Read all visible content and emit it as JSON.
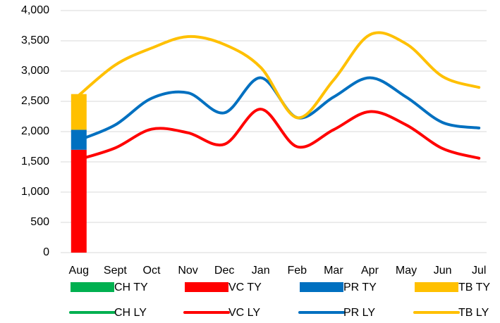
{
  "chart_data": {
    "type": "combo",
    "categories": [
      "Aug",
      "Sept",
      "Oct",
      "Nov",
      "Dec",
      "Jan",
      "Feb",
      "Mar",
      "Apr",
      "May",
      "Jun",
      "Jul"
    ],
    "ylim": [
      0,
      4000
    ],
    "yticks": [
      0,
      500,
      {
        "value": 1000,
        "label": "1,000"
      },
      {
        "value": 1500,
        "label": "1,500"
      },
      {
        "value": 2000,
        "label": "2,000"
      },
      {
        "value": 2500,
        "label": "2,500"
      },
      {
        "value": 3000,
        "label": "3,000"
      },
      {
        "value": 3500,
        "label": "3,500"
      },
      {
        "value": 4000,
        "label": "4,000"
      }
    ],
    "grid": true,
    "legend": "bottom",
    "series": [
      {
        "name": "CH TY",
        "kind": "bar",
        "color": "#00b050",
        "values": [
          0,
          null,
          null,
          null,
          null,
          null,
          null,
          null,
          null,
          null,
          null,
          null
        ]
      },
      {
        "name": "VC TY",
        "kind": "bar",
        "color": "#ff0000",
        "values": [
          1700,
          null,
          null,
          null,
          null,
          null,
          null,
          null,
          null,
          null,
          null,
          null
        ]
      },
      {
        "name": "PR TY",
        "kind": "bar",
        "color": "#0070c0",
        "values": [
          330,
          null,
          null,
          null,
          null,
          null,
          null,
          null,
          null,
          null,
          null,
          null
        ]
      },
      {
        "name": "TB TY",
        "kind": "bar",
        "color": "#ffc000",
        "values": [
          590,
          null,
          null,
          null,
          null,
          null,
          null,
          null,
          null,
          null,
          null,
          null
        ]
      },
      {
        "name": "CH LY",
        "kind": "line",
        "color": "#00b050",
        "values": [
          null,
          null,
          null,
          null,
          null,
          null,
          null,
          null,
          null,
          null,
          null,
          null
        ]
      },
      {
        "name": "VC LY",
        "kind": "line",
        "color": "#ff0000",
        "values": [
          1540,
          1730,
          2040,
          1980,
          1790,
          2370,
          1750,
          2030,
          2330,
          2110,
          1720,
          1560
        ]
      },
      {
        "name": "PR LY",
        "kind": "line",
        "color": "#0070c0",
        "values": [
          1860,
          2110,
          2550,
          2640,
          2310,
          2890,
          2230,
          2570,
          2890,
          2570,
          2150,
          2060
        ]
      },
      {
        "name": "TB LY",
        "kind": "line",
        "color": "#ffc000",
        "values": [
          2600,
          3100,
          3380,
          3570,
          3440,
          3060,
          2230,
          2850,
          3600,
          3450,
          2910,
          2730
        ]
      }
    ]
  }
}
